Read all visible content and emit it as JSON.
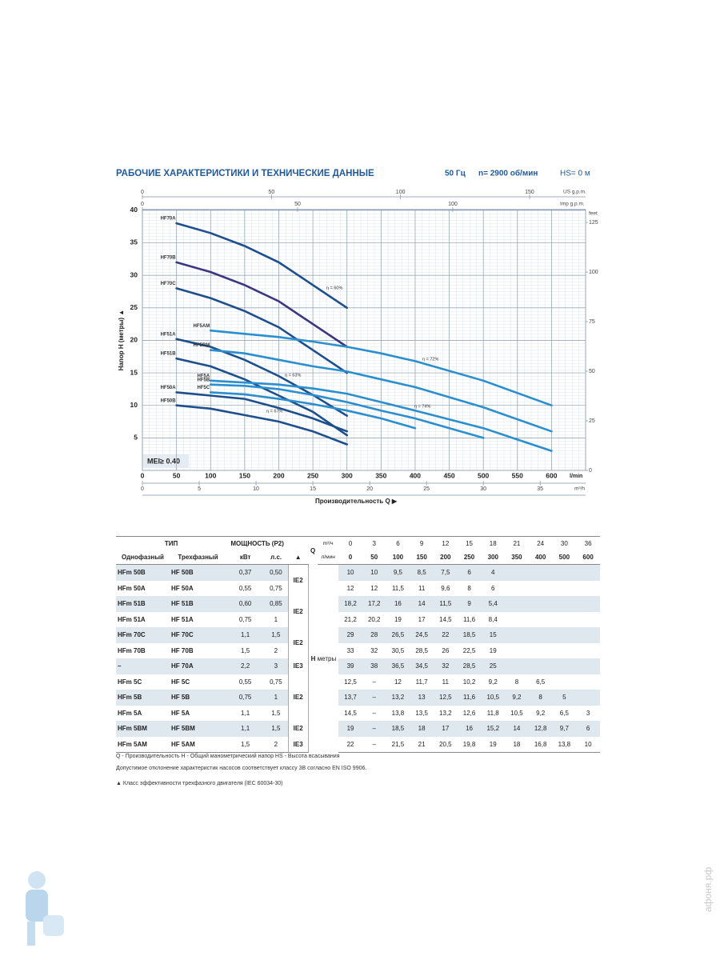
{
  "header": {
    "title": "РАБОЧИЕ ХАРАКТЕРИСТИКИ И ТЕХНИЧЕСКИЕ ДАННЫЕ",
    "frequency": "50 Гц",
    "speed": "n= 2900 об/мин",
    "suction": "HS= 0 м"
  },
  "chart_data": {
    "type": "line",
    "grid": true,
    "xlabel": "Производительность Q ▶",
    "ylabel": "Напор H (метры) ▲",
    "x_unit": "l/min",
    "mei": "MEI≥ 0.40",
    "xlim": [
      0,
      650
    ],
    "ylim": [
      0,
      40.1
    ],
    "xticks": [
      0,
      50,
      100,
      150,
      200,
      250,
      300,
      350,
      400,
      450,
      500,
      550,
      600
    ],
    "yticks": [
      5,
      10,
      15,
      20,
      25,
      30,
      35,
      40
    ],
    "us_gpm_axis": {
      "label": "US g.p.m.",
      "lim": [
        0,
        171.7
      ],
      "ticks": [
        0,
        50,
        100,
        150
      ]
    },
    "imp_gpm_axis": {
      "label": "Imp g.p.m.",
      "lim": [
        0,
        142.8
      ],
      "ticks": [
        0,
        50,
        100
      ]
    },
    "m3h_axis": {
      "label": "m³/h",
      "lim": [
        0,
        39
      ],
      "ticks": [
        0,
        5,
        10,
        15,
        20,
        25,
        30,
        35
      ]
    },
    "feet_axis": {
      "label": "feet",
      "lim": [
        0,
        131.5
      ],
      "ticks": [
        0,
        25,
        50,
        75,
        100,
        125
      ]
    },
    "x": [
      50,
      100,
      150,
      200,
      250,
      300,
      350,
      400,
      500,
      600
    ],
    "series": [
      {
        "name": "HF50B",
        "color": "#1d4f8c",
        "values": [
          10,
          9.5,
          8.5,
          7.5,
          6,
          4,
          null,
          null,
          null,
          null
        ]
      },
      {
        "name": "HF50A",
        "color": "#1d4f8c",
        "values": [
          12,
          11.5,
          11,
          9.6,
          8,
          6,
          null,
          null,
          null,
          null
        ]
      },
      {
        "name": "HF51B",
        "color": "#1d4f8c",
        "values": [
          17.2,
          16,
          14,
          11.5,
          9,
          5.4,
          null,
          null,
          null,
          null
        ]
      },
      {
        "name": "HF51A",
        "color": "#1d4f8c",
        "values": [
          20.2,
          19,
          17,
          14.5,
          11.6,
          8.4,
          null,
          null,
          null,
          null
        ]
      },
      {
        "name": "HF70C",
        "color": "#1d4f8c",
        "values": [
          28,
          26.5,
          24.5,
          22,
          18.5,
          15,
          null,
          null,
          null,
          null
        ]
      },
      {
        "name": "HF70B",
        "color": "#3b3680",
        "values": [
          32,
          30.5,
          28.5,
          26,
          22.5,
          19,
          null,
          null,
          null,
          null
        ]
      },
      {
        "name": "HF70A",
        "color": "#1d4f8c",
        "values": [
          38,
          36.5,
          34.5,
          32,
          28.5,
          25,
          null,
          null,
          null,
          null
        ]
      },
      {
        "name": "HF5C",
        "color": "#2b8fcf",
        "values": [
          null,
          12,
          11.7,
          11,
          10.2,
          9.2,
          8,
          6.5,
          null,
          null
        ]
      },
      {
        "name": "HF5B",
        "color": "#2b8fcf",
        "values": [
          null,
          13.2,
          13,
          12.5,
          11.6,
          10.5,
          9.2,
          8,
          5,
          null
        ]
      },
      {
        "name": "HF5A",
        "color": "#2b8fcf",
        "values": [
          null,
          13.8,
          13.5,
          13.2,
          12.6,
          11.8,
          10.5,
          9.2,
          6.5,
          3
        ]
      },
      {
        "name": "HF5BM",
        "color": "#2b8fcf",
        "values": [
          null,
          18.5,
          18,
          17,
          16,
          15.2,
          14,
          12.8,
          9.7,
          6
        ]
      },
      {
        "name": "HF5AM",
        "color": "#2b8fcf",
        "values": [
          null,
          21.5,
          21,
          20.5,
          19.8,
          19,
          18,
          16.8,
          13.8,
          10
        ]
      }
    ],
    "annotations": [
      "η = 60%",
      "η = 63%",
      "η = 67%",
      "η = 72%",
      "η = 74%"
    ]
  },
  "table": {
    "header": {
      "type": "ТИП",
      "power": "МОЩНОСТЬ (P2)",
      "q": "Q",
      "m3h_unit": "m³/ч",
      "lmin_unit": "л/мин",
      "single": "Однофазный",
      "three": "Трехфазный",
      "kw": "кВт",
      "hp": "л.с.",
      "ie_mark": "▲",
      "h": "H",
      "h_unit": "метры"
    },
    "m3h": [
      "0",
      "3",
      "6",
      "9",
      "12",
      "15",
      "18",
      "21",
      "24",
      "30",
      "36"
    ],
    "lmin": [
      "0",
      "50",
      "100",
      "150",
      "200",
      "250",
      "300",
      "350",
      "400",
      "500",
      "600"
    ],
    "ie": [
      "IE2",
      "IE2",
      "IE2",
      "IE3",
      "IE2",
      "IE2",
      "IE3"
    ],
    "rows": [
      {
        "single": "HFm 50B",
        "three": "HF 50B",
        "kw": "0,37",
        "hp": "0,50",
        "head": [
          "10",
          "10",
          "9,5",
          "8,5",
          "7,5",
          "6",
          "4"
        ]
      },
      {
        "single": "HFm 50A",
        "three": "HF 50A",
        "kw": "0,55",
        "hp": "0,75",
        "head": [
          "12",
          "12",
          "11,5",
          "11",
          "9,6",
          "8",
          "6"
        ]
      },
      {
        "single": "HFm 51B",
        "three": "HF 51B",
        "kw": "0,60",
        "hp": "0,85",
        "head": [
          "18,2",
          "17,2",
          "16",
          "14",
          "11,5",
          "9",
          "5,4"
        ]
      },
      {
        "single": "HFm 51A",
        "three": "HF 51A",
        "kw": "0,75",
        "hp": "1",
        "head": [
          "21,2",
          "20,2",
          "19",
          "17",
          "14,5",
          "11,6",
          "8,4"
        ]
      },
      {
        "single": "HFm 70C",
        "three": "HF 70C",
        "kw": "1,1",
        "hp": "1,5",
        "head": [
          "29",
          "28",
          "26,5",
          "24,5",
          "22",
          "18,5",
          "15"
        ]
      },
      {
        "single": "HFm 70B",
        "three": "HF 70B",
        "kw": "1,5",
        "hp": "2",
        "head": [
          "33",
          "32",
          "30,5",
          "28,5",
          "26",
          "22,5",
          "19"
        ]
      },
      {
        "single": "–",
        "three": "HF 70A",
        "kw": "2,2",
        "hp": "3",
        "head": [
          "39",
          "38",
          "36,5",
          "34,5",
          "32",
          "28,5",
          "25"
        ]
      },
      {
        "single": "HFm 5C",
        "three": "HF 5C",
        "kw": "0,55",
        "hp": "0,75",
        "head": [
          "12,5",
          "–",
          "12",
          "11,7",
          "11",
          "10,2",
          "9,2",
          "8",
          "6,5"
        ]
      },
      {
        "single": "HFm 5B",
        "three": "HF 5B",
        "kw": "0,75",
        "hp": "1",
        "head": [
          "13,7",
          "–",
          "13,2",
          "13",
          "12,5",
          "11,6",
          "10,5",
          "9,2",
          "8",
          "5"
        ]
      },
      {
        "single": "HFm 5A",
        "three": "HF 5A",
        "kw": "1,1",
        "hp": "1,5",
        "head": [
          "14,5",
          "–",
          "13,8",
          "13,5",
          "13,2",
          "12,6",
          "11,8",
          "10,5",
          "9,2",
          "6,5",
          "3"
        ]
      },
      {
        "single": "HFm 5BM",
        "three": "HF 5BM",
        "kw": "1,1",
        "hp": "1,5",
        "head": [
          "19",
          "–",
          "18,5",
          "18",
          "17",
          "16",
          "15,2",
          "14",
          "12,8",
          "9,7",
          "6"
        ]
      },
      {
        "single": "HFm 5AM",
        "three": "HF 5AM",
        "kw": "1,5",
        "hp": "2",
        "head": [
          "22",
          "–",
          "21,5",
          "21",
          "20,5",
          "19,8",
          "19",
          "18",
          "16,8",
          "13,8",
          "10"
        ]
      }
    ]
  },
  "notes": {
    "legend": "Q - Производительность   H - Общий манометрический напор   HS - Высота всасывания",
    "tolerance": "Допустимое отклонение характеристик насосов соответствует классу 3B согласно EN ISO 9906.",
    "ie_class": "▲  Класс эффективности трехфазного двигателя (IEC 60034-30)"
  },
  "watermark": "афоня.рф"
}
